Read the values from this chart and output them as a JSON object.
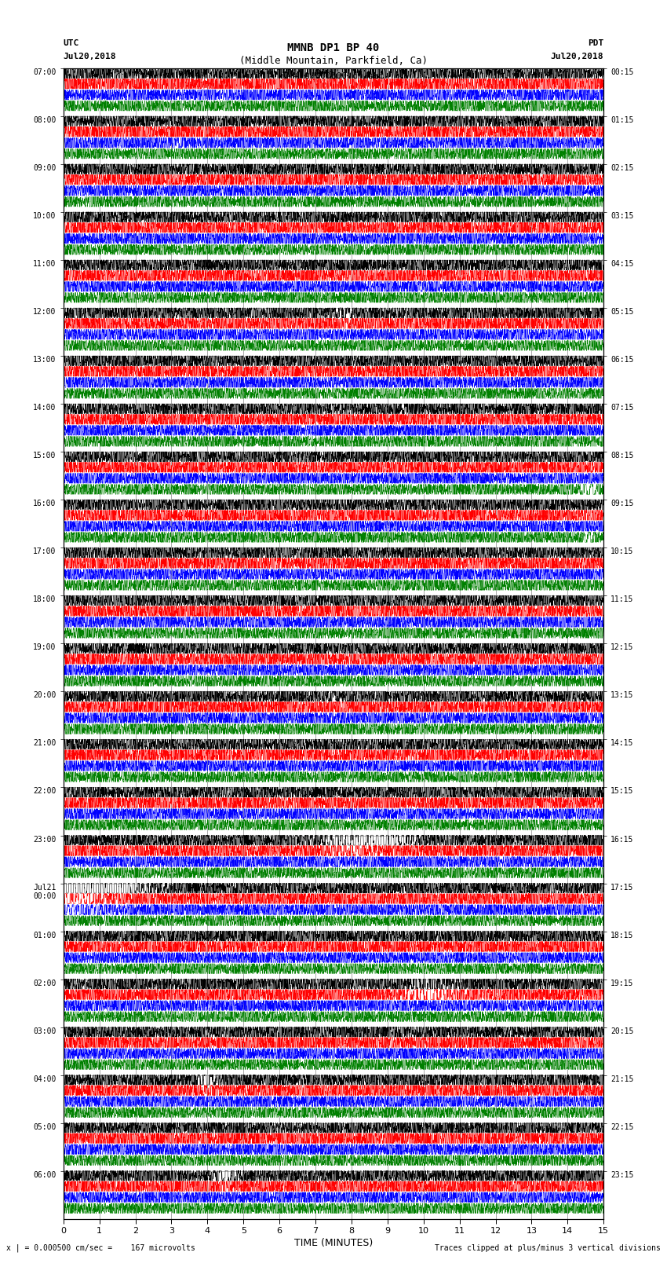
{
  "title_line1": "MMNB DP1 BP 40",
  "title_line2": "(Middle Mountain, Parkfield, Ca)",
  "scale_text": "I = 0.000500 cm/sec",
  "left_label_top": "UTC",
  "left_label_date": "Jul20,2018",
  "right_label_top": "PDT",
  "right_label_date": "Jul20,2018",
  "footer_left": "x | = 0.000500 cm/sec =    167 microvolts",
  "footer_right": "Traces clipped at plus/minus 3 vertical divisions",
  "xlabel": "TIME (MINUTES)",
  "bg_color": "#ffffff",
  "trace_colors": [
    "black",
    "red",
    "blue",
    "green"
  ],
  "num_rows": 24,
  "fig_width": 8.5,
  "fig_height": 16.13,
  "dpi": 100,
  "left_tick_labels": [
    "07:00",
    "08:00",
    "09:00",
    "10:00",
    "11:00",
    "12:00",
    "13:00",
    "14:00",
    "15:00",
    "16:00",
    "17:00",
    "18:00",
    "19:00",
    "20:00",
    "21:00",
    "22:00",
    "23:00",
    "Jul21\n00:00",
    "01:00",
    "02:00",
    "03:00",
    "04:00",
    "05:00",
    "06:00"
  ],
  "right_tick_labels": [
    "00:15",
    "01:15",
    "02:15",
    "03:15",
    "04:15",
    "05:15",
    "06:15",
    "07:15",
    "08:15",
    "09:15",
    "10:15",
    "11:15",
    "12:15",
    "13:15",
    "14:15",
    "15:15",
    "16:15",
    "17:15",
    "18:15",
    "19:15",
    "20:15",
    "21:15",
    "22:15",
    "23:15"
  ],
  "x_tick_labels": [
    "0",
    "1",
    "2",
    "3",
    "4",
    "5",
    "6",
    "7",
    "8",
    "9",
    "10",
    "11",
    "12",
    "13",
    "14",
    "15"
  ],
  "events": [
    {
      "row": 1,
      "trace": 2,
      "time": 3.2,
      "amp": 2.5,
      "dur": 0.5
    },
    {
      "row": 4,
      "trace": 2,
      "time": 10.0,
      "amp": 2.0,
      "dur": 0.4
    },
    {
      "row": 5,
      "trace": 0,
      "time": 7.8,
      "amp": 3.5,
      "dur": 0.6
    },
    {
      "row": 5,
      "trace": 1,
      "time": 7.8,
      "amp": 2.0,
      "dur": 0.5
    },
    {
      "row": 7,
      "trace": 1,
      "time": 5.5,
      "amp": 1.5,
      "dur": 0.3
    },
    {
      "row": 7,
      "trace": 0,
      "time": 9.5,
      "amp": 1.5,
      "dur": 0.3
    },
    {
      "row": 8,
      "trace": 3,
      "time": 14.6,
      "amp": 4.0,
      "dur": 0.5
    },
    {
      "row": 9,
      "trace": 3,
      "time": 14.6,
      "amp": 3.0,
      "dur": 0.4
    },
    {
      "row": 13,
      "trace": 0,
      "time": 7.5,
      "amp": 2.0,
      "dur": 0.4
    },
    {
      "row": 13,
      "trace": 2,
      "time": 7.5,
      "amp": 1.5,
      "dur": 0.3
    },
    {
      "row": 16,
      "trace": 0,
      "time": 8.5,
      "amp": 8.0,
      "dur": 2.5
    },
    {
      "row": 16,
      "trace": 1,
      "time": 8.0,
      "amp": 4.0,
      "dur": 1.5
    },
    {
      "row": 17,
      "trace": 0,
      "time": 0.5,
      "amp": 10.0,
      "dur": 3.5
    },
    {
      "row": 17,
      "trace": 1,
      "time": 0.5,
      "amp": 4.0,
      "dur": 2.5
    },
    {
      "row": 17,
      "trace": 2,
      "time": 0.5,
      "amp": 3.0,
      "dur": 2.0
    },
    {
      "row": 19,
      "trace": 1,
      "time": 10.2,
      "amp": 5.0,
      "dur": 2.0
    },
    {
      "row": 19,
      "trace": 0,
      "time": 10.2,
      "amp": 3.0,
      "dur": 1.5
    },
    {
      "row": 21,
      "trace": 0,
      "time": 4.0,
      "amp": 4.0,
      "dur": 0.8
    },
    {
      "row": 21,
      "trace": 1,
      "time": 4.0,
      "amp": 2.5,
      "dur": 0.5
    },
    {
      "row": 23,
      "trace": 0,
      "time": 4.5,
      "amp": 4.0,
      "dur": 0.8
    },
    {
      "row": 23,
      "trace": 1,
      "time": 4.5,
      "amp": 2.0,
      "dur": 0.5
    }
  ]
}
